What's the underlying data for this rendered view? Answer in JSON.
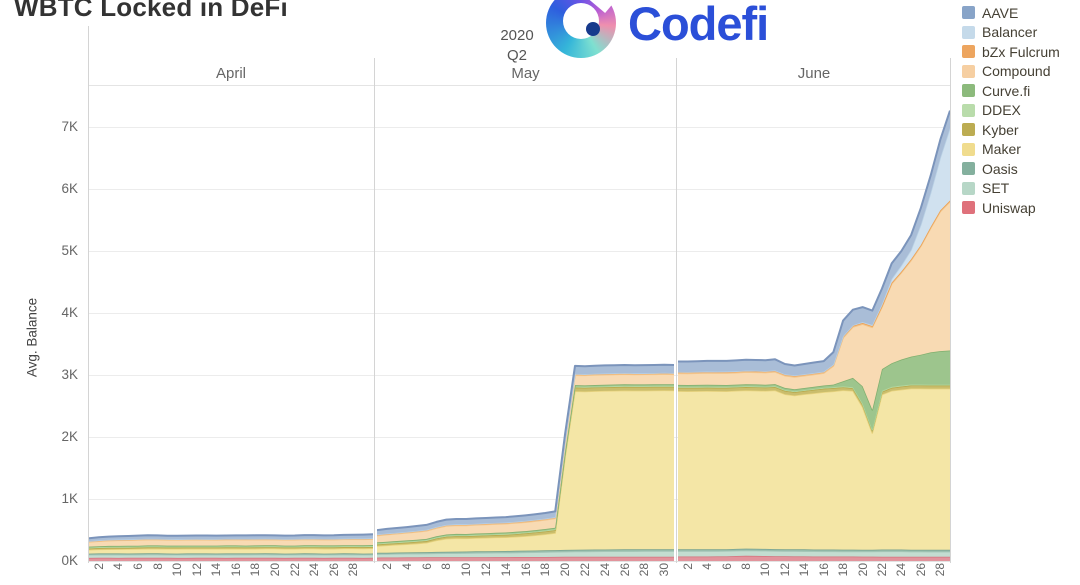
{
  "title": "WBTC Locked in DeFi",
  "logo": {
    "wordmark": "Codefi"
  },
  "period": {
    "year": "2020",
    "quarter": "Q2"
  },
  "y_axis": {
    "label": "Avg. Balance",
    "ticks": [
      "0K",
      "1K",
      "2K",
      "3K",
      "4K",
      "5K",
      "6K",
      "7K"
    ]
  },
  "chart_data": {
    "type": "area",
    "stacked": true,
    "title": "WBTC Locked in DeFi",
    "ylabel": "Avg. Balance",
    "ylim": [
      0,
      7500
    ],
    "grid": true,
    "legend_position": "right",
    "x_axis": {
      "months": [
        {
          "label": "April",
          "days": 30
        },
        {
          "label": "May",
          "days": 31
        },
        {
          "label": "June",
          "days": 29
        }
      ],
      "tick_interval": 2
    },
    "stack_order_bottom_to_top": [
      "Uniswap",
      "SET",
      "Oasis",
      "Maker",
      "Kyber",
      "DDEX",
      "Curve.fi",
      "Compound",
      "bZx Fulcrum",
      "Balancer",
      "AAVE"
    ],
    "series": [
      {
        "name": "Uniswap",
        "legend_color": "#df717b",
        "fill_color": "#e2949c",
        "line_color": "#d4737e",
        "values": [
          50,
          52,
          51,
          50,
          51,
          52,
          53,
          52,
          51,
          50,
          50,
          51,
          52,
          51,
          50,
          51,
          52,
          53,
          52,
          51,
          50,
          51,
          52,
          51,
          50,
          51,
          52,
          51,
          50,
          51,
          55,
          56,
          57,
          58,
          58,
          59,
          60,
          60,
          61,
          61,
          62,
          62,
          63,
          63,
          64,
          64,
          65,
          65,
          66,
          67,
          68,
          68,
          68,
          68,
          69,
          69,
          69,
          70,
          70,
          70,
          70,
          72,
          72,
          73,
          73,
          74,
          75,
          80,
          85,
          83,
          80,
          78,
          76,
          75,
          74,
          73,
          72,
          72,
          72,
          72,
          71,
          71,
          70,
          70,
          70,
          70,
          70,
          70,
          70,
          70
        ]
      },
      {
        "name": "SET",
        "legend_color": "#b7d7c7",
        "fill_color": "#c3ddd0",
        "line_color": "#a9cabb",
        "values": [
          50,
          50,
          51,
          51,
          50,
          50,
          51,
          51,
          50,
          50,
          51,
          51,
          50,
          50,
          51,
          51,
          50,
          50,
          51,
          51,
          50,
          50,
          51,
          51,
          50,
          50,
          51,
          51,
          50,
          50,
          55,
          56,
          57,
          58,
          59,
          60,
          62,
          64,
          65,
          66,
          67,
          68,
          69,
          70,
          72,
          74,
          76,
          78,
          80,
          82,
          85,
          86,
          87,
          88,
          88,
          89,
          89,
          90,
          90,
          90,
          90,
          88,
          88,
          87,
          87,
          86,
          86,
          85,
          85,
          85,
          85,
          84,
          84,
          84,
          84,
          83,
          83,
          83,
          82,
          82,
          82,
          82,
          85,
          85,
          85,
          82,
          82,
          80,
          80,
          80
        ]
      },
      {
        "name": "Oasis",
        "legend_color": "#84b09e",
        "fill_color": "#97bdac",
        "line_color": "#78a390",
        "values": [
          20,
          20,
          21,
          21,
          20,
          20,
          21,
          21,
          20,
          20,
          21,
          21,
          20,
          20,
          21,
          21,
          20,
          20,
          21,
          21,
          20,
          20,
          21,
          21,
          20,
          20,
          21,
          21,
          20,
          20,
          22,
          22,
          23,
          23,
          24,
          24,
          25,
          25,
          26,
          26,
          27,
          27,
          28,
          28,
          28,
          29,
          29,
          29,
          30,
          30,
          30,
          30,
          30,
          30,
          30,
          30,
          30,
          30,
          30,
          30,
          30,
          30,
          30,
          30,
          30,
          30,
          30,
          30,
          30,
          30,
          30,
          30,
          30,
          30,
          30,
          30,
          30,
          30,
          30,
          30,
          30,
          30,
          30,
          30,
          30,
          30,
          30,
          30,
          30,
          30
        ]
      },
      {
        "name": "Maker",
        "legend_color": "#f0dc8e",
        "fill_color": "#f4e6a6",
        "line_color": "#e9d47f",
        "values": [
          60,
          65,
          68,
          70,
          72,
          73,
          74,
          75,
          75,
          76,
          75,
          74,
          75,
          76,
          77,
          76,
          75,
          76,
          77,
          78,
          77,
          76,
          77,
          78,
          79,
          78,
          79,
          80,
          82,
          85,
          110,
          118,
          125,
          132,
          140,
          150,
          185,
          210,
          215,
          212,
          215,
          218,
          220,
          222,
          228,
          235,
          245,
          258,
          275,
          1500,
          2555,
          2550,
          2555,
          2558,
          2560,
          2562,
          2560,
          2558,
          2560,
          2562,
          2560,
          2550,
          2548,
          2550,
          2552,
          2550,
          2548,
          2550,
          2552,
          2550,
          2548,
          2560,
          2500,
          2480,
          2500,
          2520,
          2540,
          2550,
          2570,
          2560,
          2300,
          1880,
          2500,
          2560,
          2580,
          2600,
          2600,
          2600,
          2600,
          2600
        ]
      },
      {
        "name": "Kyber",
        "legend_color": "#bcac52",
        "fill_color": "#cabd6c",
        "line_color": "#b6a748",
        "values": [
          22,
          22,
          22,
          22,
          22,
          22,
          22,
          22,
          22,
          22,
          22,
          22,
          22,
          22,
          22,
          22,
          22,
          22,
          22,
          22,
          22,
          22,
          22,
          22,
          22,
          22,
          22,
          22,
          22,
          22,
          25,
          26,
          27,
          28,
          29,
          30,
          32,
          34,
          35,
          36,
          37,
          38,
          39,
          40,
          42,
          44,
          46,
          48,
          48,
          48,
          60,
          60,
          60,
          60,
          60,
          60,
          60,
          60,
          60,
          60,
          60,
          55,
          55,
          55,
          55,
          55,
          55,
          55,
          55,
          55,
          55,
          55,
          55,
          55,
          55,
          55,
          55,
          55,
          50,
          45,
          42,
          40,
          45,
          50,
          50,
          50,
          50,
          50,
          50,
          50
        ]
      },
      {
        "name": "DDEX",
        "legend_color": "#b9dcab",
        "fill_color": "#c7e3b9",
        "line_color": "#afd59b",
        "values": [
          15,
          15,
          15,
          15,
          15,
          15,
          15,
          15,
          15,
          15,
          15,
          15,
          15,
          15,
          15,
          15,
          15,
          15,
          15,
          15,
          15,
          15,
          15,
          15,
          15,
          15,
          15,
          15,
          15,
          15,
          15,
          15,
          15,
          15,
          15,
          15,
          15,
          15,
          15,
          15,
          15,
          15,
          15,
          15,
          15,
          15,
          15,
          15,
          15,
          15,
          15,
          15,
          15,
          15,
          15,
          15,
          15,
          15,
          15,
          15,
          15,
          15,
          15,
          15,
          15,
          15,
          15,
          15,
          15,
          15,
          15,
          15,
          15,
          15,
          15,
          15,
          15,
          15,
          15,
          15,
          15,
          15,
          15,
          15,
          15,
          15,
          15,
          15,
          15,
          15
        ]
      },
      {
        "name": "Curve.fi",
        "legend_color": "#8cba7c",
        "fill_color": "#9dc58d",
        "line_color": "#80af6e",
        "values": [
          15,
          15,
          15,
          15,
          15,
          15,
          15,
          15,
          15,
          15,
          15,
          15,
          15,
          15,
          15,
          15,
          15,
          15,
          15,
          15,
          15,
          15,
          15,
          15,
          15,
          15,
          15,
          15,
          15,
          15,
          18,
          18,
          18,
          19,
          19,
          19,
          20,
          20,
          20,
          20,
          21,
          21,
          21,
          22,
          22,
          22,
          23,
          23,
          23,
          24,
          24,
          24,
          24,
          25,
          25,
          25,
          25,
          25,
          25,
          25,
          25,
          30,
          30,
          30,
          30,
          30,
          30,
          30,
          30,
          30,
          30,
          32,
          32,
          32,
          32,
          34,
          35,
          40,
          80,
          150,
          280,
          320,
          350,
          380,
          420,
          450,
          480,
          520,
          540,
          550
        ]
      },
      {
        "name": "Compound",
        "legend_color": "#f6cfa2",
        "fill_color": "#f8dab3",
        "line_color": "#f3c78c",
        "values": [
          75,
          80,
          85,
          88,
          90,
          92,
          93,
          92,
          91,
          90,
          91,
          92,
          91,
          90,
          91,
          92,
          93,
          92,
          91,
          90,
          91,
          92,
          93,
          92,
          91,
          92,
          93,
          94,
          95,
          96,
          110,
          115,
          118,
          120,
          124,
          128,
          132,
          136,
          138,
          137,
          138,
          139,
          140,
          141,
          142,
          143,
          145,
          147,
          150,
          155,
          160,
          160,
          161,
          160,
          161,
          162,
          160,
          161,
          160,
          162,
          160,
          185,
          186,
          188,
          190,
          190,
          192,
          192,
          194,
          194,
          195,
          196,
          196,
          197,
          198,
          198,
          200,
          300,
          700,
          820,
          1000,
          1330,
          1000,
          1280,
          1400,
          1550,
          1750,
          2000,
          2250,
          2400
        ]
      },
      {
        "name": "bZx Fulcrum",
        "legend_color": "#eda55f",
        "fill_color": "#f3ba7f",
        "line_color": "#ed9f50",
        "values": [
          12,
          12,
          12,
          12,
          12,
          12,
          12,
          12,
          12,
          12,
          12,
          12,
          12,
          12,
          12,
          12,
          12,
          12,
          12,
          12,
          12,
          12,
          12,
          12,
          12,
          12,
          12,
          12,
          12,
          12,
          15,
          15,
          15,
          15,
          16,
          16,
          16,
          16,
          16,
          17,
          17,
          17,
          17,
          17,
          17,
          18,
          18,
          18,
          18,
          17,
          17,
          17,
          17,
          17,
          17,
          17,
          17,
          17,
          18,
          18,
          18,
          20,
          20,
          20,
          20,
          20,
          20,
          20,
          20,
          20,
          20,
          20,
          20,
          20,
          20,
          20,
          20,
          20,
          20,
          20,
          20,
          20,
          20,
          20,
          20,
          20,
          20,
          20,
          20,
          20
        ]
      },
      {
        "name": "Balancer",
        "legend_color": "#c5daea",
        "fill_color": "#d0e1ef",
        "line_color": "#b9d1e5",
        "values": [
          2,
          2,
          2,
          2,
          2,
          2,
          2,
          2,
          2,
          2,
          2,
          2,
          2,
          2,
          2,
          2,
          2,
          2,
          2,
          2,
          2,
          2,
          2,
          2,
          2,
          2,
          2,
          2,
          2,
          2,
          2,
          2,
          2,
          2,
          2,
          2,
          2,
          2,
          2,
          3,
          3,
          3,
          3,
          3,
          3,
          3,
          3,
          3,
          3,
          3,
          3,
          3,
          3,
          3,
          3,
          3,
          3,
          3,
          3,
          3,
          3,
          5,
          5,
          5,
          5,
          5,
          5,
          5,
          5,
          5,
          5,
          5,
          5,
          5,
          5,
          5,
          5,
          5,
          8,
          10,
          15,
          20,
          30,
          60,
          100,
          150,
          330,
          550,
          850,
          1170
        ]
      },
      {
        "name": "AAVE",
        "legend_color": "#88a4c8",
        "fill_color": "#a9bdd7",
        "line_color": "#7b94bb",
        "values": [
          45,
          50,
          52,
          54,
          55,
          56,
          57,
          56,
          55,
          54,
          55,
          56,
          57,
          56,
          55,
          56,
          57,
          58,
          57,
          56,
          55,
          56,
          57,
          58,
          57,
          58,
          59,
          60,
          62,
          64,
          72,
          74,
          75,
          76,
          78,
          80,
          82,
          85,
          85,
          84,
          85,
          86,
          86,
          87,
          88,
          88,
          89,
          90,
          92,
          110,
          130,
          128,
          130,
          131,
          130,
          130,
          129,
          130,
          131,
          130,
          130,
          168,
          168,
          170,
          170,
          172,
          172,
          174,
          174,
          175,
          175,
          178,
          165,
          160,
          165,
          168,
          170,
          200,
          250,
          250,
          240,
          230,
          250,
          250,
          230,
          240,
          270,
          280,
          290,
          280
        ]
      }
    ]
  }
}
